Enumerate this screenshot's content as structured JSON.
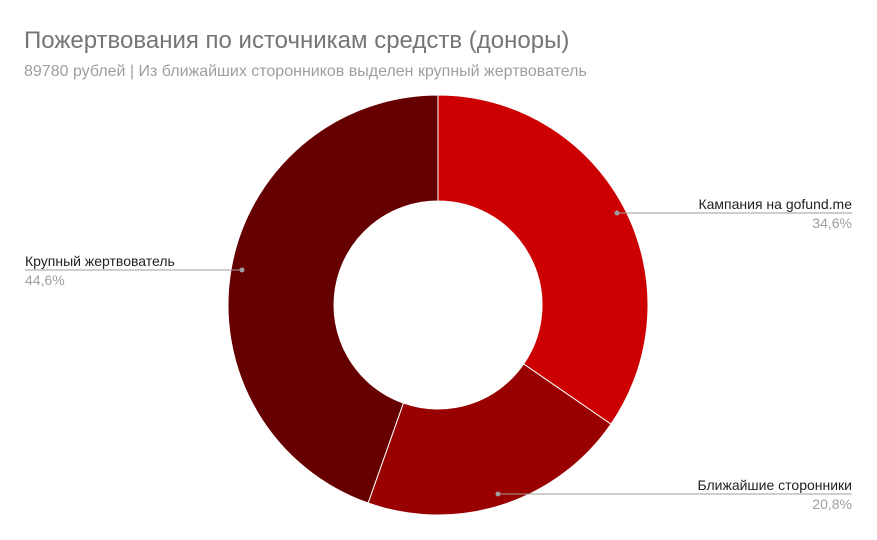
{
  "chart_data": {
    "type": "pie",
    "variant": "donut",
    "title": "Пожертвования по источникам средств (доноры)",
    "subtitle": "89780 рублей | Из ближайших сторонников выделен крупный жертвователь",
    "legend": "labels-on-leader-lines",
    "slices": [
      {
        "label": "Кампания на gofund.me",
        "value": 34.6,
        "value_label": "34,6%",
        "color": "#cc0000"
      },
      {
        "label": "Ближайшие сторонники",
        "value": 20.8,
        "value_label": "20,8%",
        "color": "#990000"
      },
      {
        "label": "Крупный жертвователь",
        "value": 44.6,
        "value_label": "44,6%",
        "color": "#660000"
      }
    ]
  }
}
